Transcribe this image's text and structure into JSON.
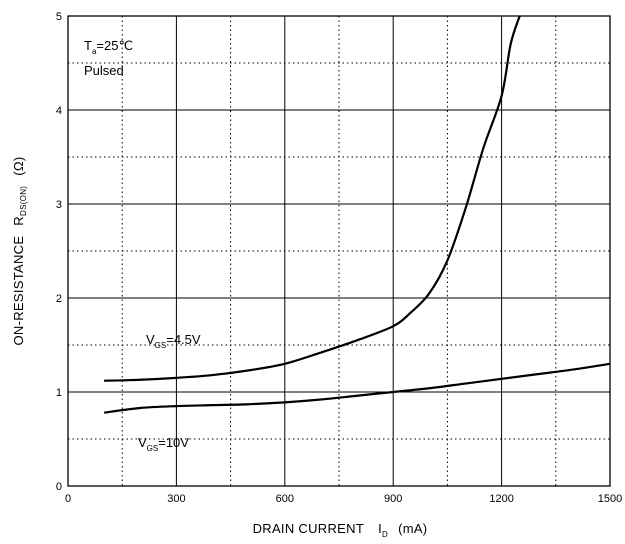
{
  "chart_data": {
    "type": "line",
    "title": "",
    "xlabel": {
      "main": "DRAIN CURRENT",
      "symbol": "I",
      "subscript": "D",
      "unit": "(mA)"
    },
    "ylabel": {
      "main": "ON-RESISTANCE",
      "symbol": "R",
      "subscript": "DS(ON)",
      "unit": "(Ω)"
    },
    "xlim": [
      0,
      1500
    ],
    "ylim": [
      0,
      5
    ],
    "x_ticks": [
      "0",
      "300",
      "600",
      "900",
      "1200",
      "1500"
    ],
    "y_ticks": [
      "0",
      "1",
      "2",
      "3",
      "4",
      "5"
    ],
    "grid": {
      "major": "solid",
      "minor": "dotted"
    },
    "conditions": {
      "ta": {
        "symbol": "T",
        "subscript": "a",
        "value": "=25℃"
      },
      "pulsed": "Pulsed"
    },
    "series": [
      {
        "name": "VGS=4.5V",
        "label": {
          "symbol": "V",
          "subscript": "GS",
          "value": "=4.5V"
        },
        "x": [
          100,
          200,
          300,
          400,
          500,
          600,
          700,
          800,
          900,
          950,
          1000,
          1050,
          1100,
          1150,
          1200,
          1225,
          1250
        ],
        "y": [
          1.12,
          1.13,
          1.15,
          1.18,
          1.23,
          1.3,
          1.42,
          1.55,
          1.7,
          1.85,
          2.05,
          2.4,
          2.95,
          3.6,
          4.15,
          4.7,
          5.0
        ]
      },
      {
        "name": "VGS=10V",
        "label": {
          "symbol": "V",
          "subscript": "GS",
          "value": "=10V"
        },
        "x": [
          100,
          200,
          300,
          400,
          500,
          600,
          700,
          800,
          900,
          1000,
          1100,
          1200,
          1300,
          1400,
          1500
        ],
        "y": [
          0.78,
          0.83,
          0.85,
          0.86,
          0.87,
          0.89,
          0.92,
          0.96,
          1.0,
          1.04,
          1.09,
          1.14,
          1.19,
          1.24,
          1.3
        ]
      }
    ]
  }
}
